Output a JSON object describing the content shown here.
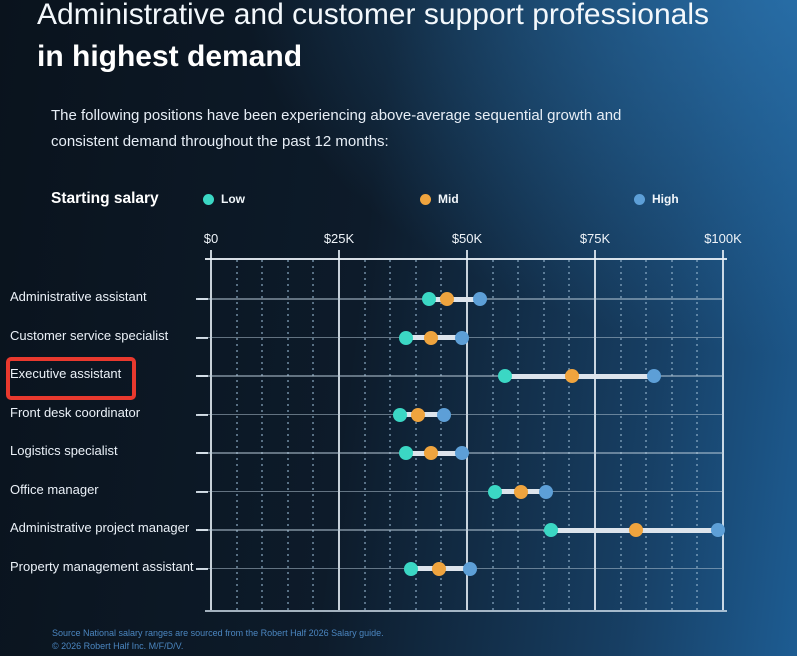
{
  "title": {
    "line1": "Administrative and customer support professionals",
    "line2": "in highest demand"
  },
  "subtitle_lines": [
    "The following positions have been experiencing above-average sequential growth and",
    "consistent demand throughout the past 12 months:"
  ],
  "legend": {
    "title": "Starting salary"
  },
  "chart_data": {
    "type": "scatter",
    "subtype": "dumbbell-range",
    "title": "Starting salary",
    "categories": [
      "Administrative assistant",
      "Customer service specialist",
      "Executive assistant",
      "Front desk coordinator",
      "Logistics specialist",
      "Office manager",
      "Administrative project manager",
      "Property management assistant"
    ],
    "series": [
      {
        "name": "Low",
        "color": "#3bd7c4",
        "values": [
          42500,
          38000,
          57500,
          37000,
          38000,
          55500,
          66500,
          39000
        ]
      },
      {
        "name": "Mid",
        "color": "#efa43e",
        "values": [
          46000,
          43000,
          70500,
          40500,
          43000,
          60500,
          83000,
          44500
        ]
      },
      {
        "name": "High",
        "color": "#5d9fd7",
        "values": [
          52500,
          49000,
          86500,
          45500,
          49000,
          65500,
          99000,
          50500
        ]
      }
    ],
    "x_axis": {
      "tick_labels": [
        "$0",
        "$25K",
        "$50K",
        "$75K",
        "$100K"
      ],
      "tick_values": [
        0,
        25000,
        50000,
        75000,
        100000
      ],
      "range": [
        0,
        100000
      ],
      "minor_grid_step": 5000
    },
    "grid": true,
    "legend_position": "top",
    "highlighted_category": "Executive assistant",
    "highlight_color": "#e9392e"
  },
  "source": {
    "line1": "Source National salary ranges are sourced from the Robert Half 2026 Salary guide.",
    "line2": "© 2026 Robert Half Inc. M/F/D/V."
  },
  "colors": {
    "background_dark": "#0a131d",
    "background_bright": "#1d5c92",
    "low": "#3bd7c4",
    "mid": "#efa43e",
    "high": "#5d9fd7",
    "highlight_red": "#e9392e",
    "connector": "#dde4ec"
  }
}
